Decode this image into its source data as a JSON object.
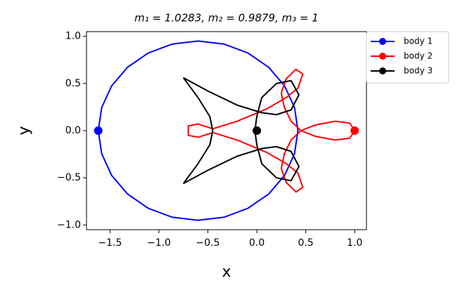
{
  "chart_data": {
    "type": "line",
    "title": "m₁ = 1.0283, m₂ = 0.9879, m₃ = 1",
    "x_label": "x",
    "y_label": "y",
    "xlim": [
      -1.74,
      1.12
    ],
    "ylim": [
      -1.05,
      1.05
    ],
    "xticks": [
      {
        "value": -1.5,
        "label": "−1.5"
      },
      {
        "value": -1.0,
        "label": "−1.0"
      },
      {
        "value": -0.5,
        "label": "−0.5"
      },
      {
        "value": 0,
        "label": "0.0"
      },
      0.5,
      {
        "value": 1.0,
        "label": "1.0"
      }
    ],
    "yticks": [
      {
        "value": -1.0,
        "label": "−1.0"
      },
      {
        "value": -0.5,
        "label": "−0.5"
      },
      {
        "value": 0,
        "label": "0.0"
      },
      0.5,
      {
        "value": 1.0,
        "label": "1.0"
      }
    ],
    "grid": false,
    "legend": "outside upper right",
    "series": [
      {
        "name": "body 1",
        "color": "#0000ff",
        "x": [
          -1.62,
          -1.585,
          -1.483,
          -1.321,
          -1.11,
          -0.864,
          -0.6,
          -0.336,
          -0.09,
          0.121,
          0.283,
          0.385,
          0.42,
          0.385,
          0.283,
          0.121,
          -0.09,
          -0.336,
          -0.6,
          -0.864,
          -1.11,
          -1.321,
          -1.483,
          -1.585,
          -1.62
        ],
        "y": [
          0,
          0.246,
          0.475,
          0.672,
          0.823,
          0.918,
          0.95,
          0.918,
          0.823,
          0.672,
          0.475,
          0.246,
          0,
          -0.246,
          -0.475,
          -0.672,
          -0.823,
          -0.918,
          -0.95,
          -0.918,
          -0.823,
          -0.672,
          -0.475,
          -0.246,
          0
        ]
      },
      {
        "name": "body 2",
        "color": "#ff0000",
        "x": [
          1.0,
          0.95,
          0.8,
          0.6,
          0.45,
          0.35,
          0.28,
          0.25,
          0.3,
          0.4,
          0.47,
          0.42,
          0.3,
          0.1,
          -0.2,
          -0.45,
          -0.6,
          -0.7,
          -0.7,
          -0.6,
          -0.45,
          -0.2,
          0.1,
          0.3,
          0.42,
          0.47,
          0.4,
          0.3,
          0.25,
          0.28,
          0.35,
          0.45,
          0.6,
          0.8,
          0.95,
          1.0
        ],
        "y": [
          0,
          0.08,
          0.1,
          0.06,
          0,
          -0.1,
          -0.25,
          -0.4,
          -0.55,
          -0.65,
          -0.6,
          -0.45,
          -0.35,
          -0.23,
          -0.1,
          -0.02,
          -0.07,
          -0.05,
          0.05,
          0.07,
          0.02,
          0.1,
          0.23,
          0.35,
          0.45,
          0.6,
          0.65,
          0.55,
          0.4,
          0.25,
          0.1,
          0,
          -0.06,
          -0.1,
          -0.08,
          0
        ]
      },
      {
        "name": "body 3",
        "color": "#000000",
        "x": [
          0,
          -0.02,
          0,
          0.05,
          0.2,
          0.35,
          0.43,
          0.35,
          0.2,
          0.05,
          -0.2,
          -0.5,
          -0.75,
          -0.6,
          -0.48,
          -0.45,
          -0.48,
          -0.6,
          -0.75,
          -0.5,
          -0.2,
          0.05,
          0.2,
          0.35,
          0.43,
          0.35,
          0.2,
          0.05,
          0,
          -0.02,
          0
        ],
        "y": [
          0.15,
          0,
          -0.15,
          -0.35,
          -0.5,
          -0.53,
          -0.38,
          -0.22,
          -0.17,
          -0.19,
          -0.27,
          -0.42,
          -0.56,
          -0.35,
          -0.15,
          0,
          0.15,
          0.35,
          0.56,
          0.42,
          0.27,
          0.19,
          0.17,
          0.22,
          0.38,
          0.53,
          0.5,
          0.35,
          0.15,
          0,
          -0.15
        ]
      },
      {
        "name": null,
        "color": null,
        "x": [],
        "y": []
      }
    ],
    "markers": [
      {
        "x": -1.62,
        "y": 0
      },
      {
        "x": 1.0,
        "y": 0
      },
      {
        "x": 0,
        "y": 0
      }
    ]
  }
}
